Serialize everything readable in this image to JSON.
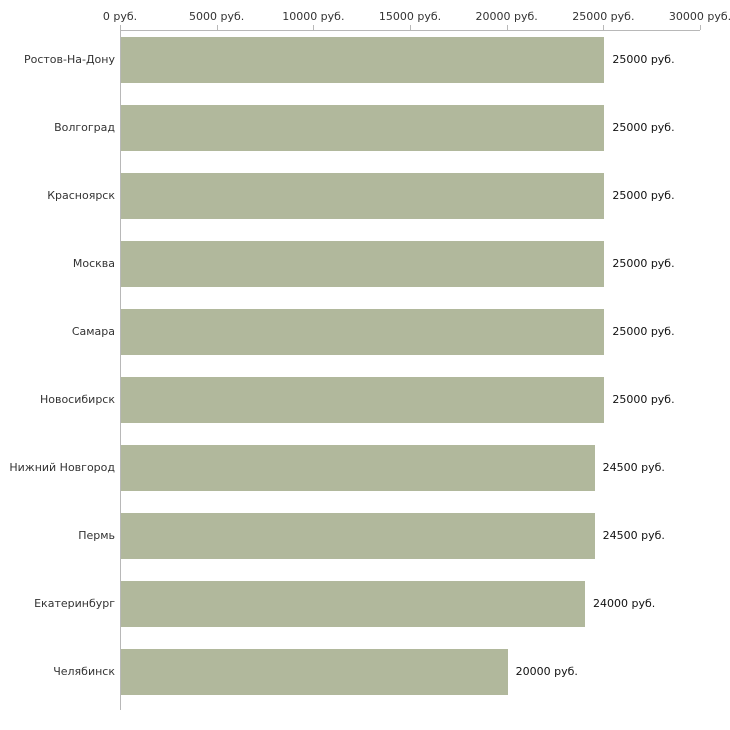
{
  "chart_data": {
    "type": "bar",
    "orientation": "horizontal",
    "title": "",
    "xlabel": "",
    "ylabel": "",
    "categories": [
      "Ростов-На-Дону",
      "Волгоград",
      "Красноярск",
      "Москва",
      "Самара",
      "Новосибирск",
      "Нижний Новгород",
      "Пермь",
      "Екатеринбург",
      "Челябинск"
    ],
    "values": [
      25000,
      25000,
      25000,
      25000,
      25000,
      25000,
      24500,
      24500,
      24000,
      20000
    ],
    "value_labels": [
      "25000 руб.",
      "25000 руб.",
      "25000 руб.",
      "25000 руб.",
      "25000 руб.",
      "25000 руб.",
      "24500 руб.",
      "24500 руб.",
      "24000 руб.",
      "20000 руб."
    ],
    "xlim": [
      0,
      30000
    ],
    "x_ticks": [
      0,
      5000,
      10000,
      15000,
      20000,
      25000,
      30000
    ],
    "x_tick_labels": [
      "0 руб.",
      "5000 руб.",
      "10000 руб.",
      "15000 руб.",
      "20000 руб.",
      "25000 руб.",
      "30000 руб."
    ],
    "grid": false,
    "legend_position": "none",
    "colors": {
      "bar": "#b1b89c",
      "axis": "#b8b8b8",
      "label_text": "#333333",
      "value_text": "#111111",
      "background": "#ffffff"
    }
  }
}
